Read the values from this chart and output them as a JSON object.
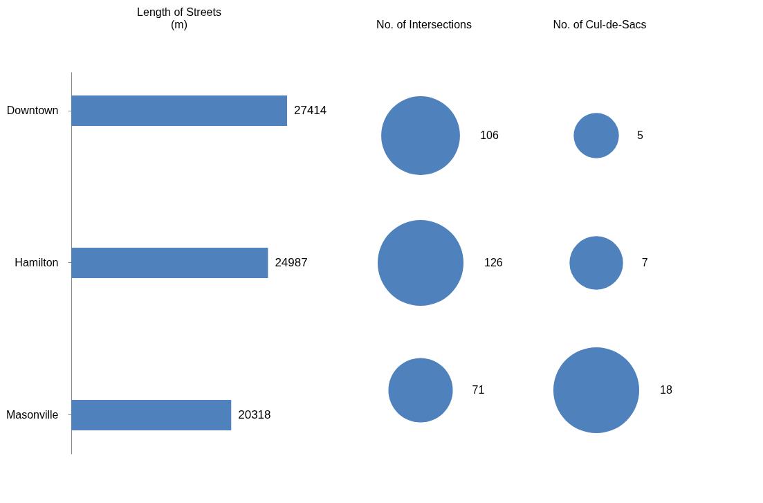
{
  "chart_data": [
    {
      "type": "bar",
      "orientation": "horizontal",
      "title": "Length of Streets\n(m)",
      "categories": [
        "Downtown",
        "Hamilton",
        "Masonville"
      ],
      "values": [
        27414,
        24987,
        20318
      ],
      "color": "#4f81bd",
      "data_labels": true,
      "tick_labels": "y"
    },
    {
      "type": "other",
      "title": "No. of Intersections",
      "values": [
        106,
        126,
        71
      ],
      "color": "#4f81bd",
      "data_labels": true
    },
    {
      "type": "other",
      "title": "No. of Cul-de-Sacs",
      "values": [
        5,
        7,
        18
      ],
      "color": "#4f81bd",
      "data_labels": true
    }
  ]
}
